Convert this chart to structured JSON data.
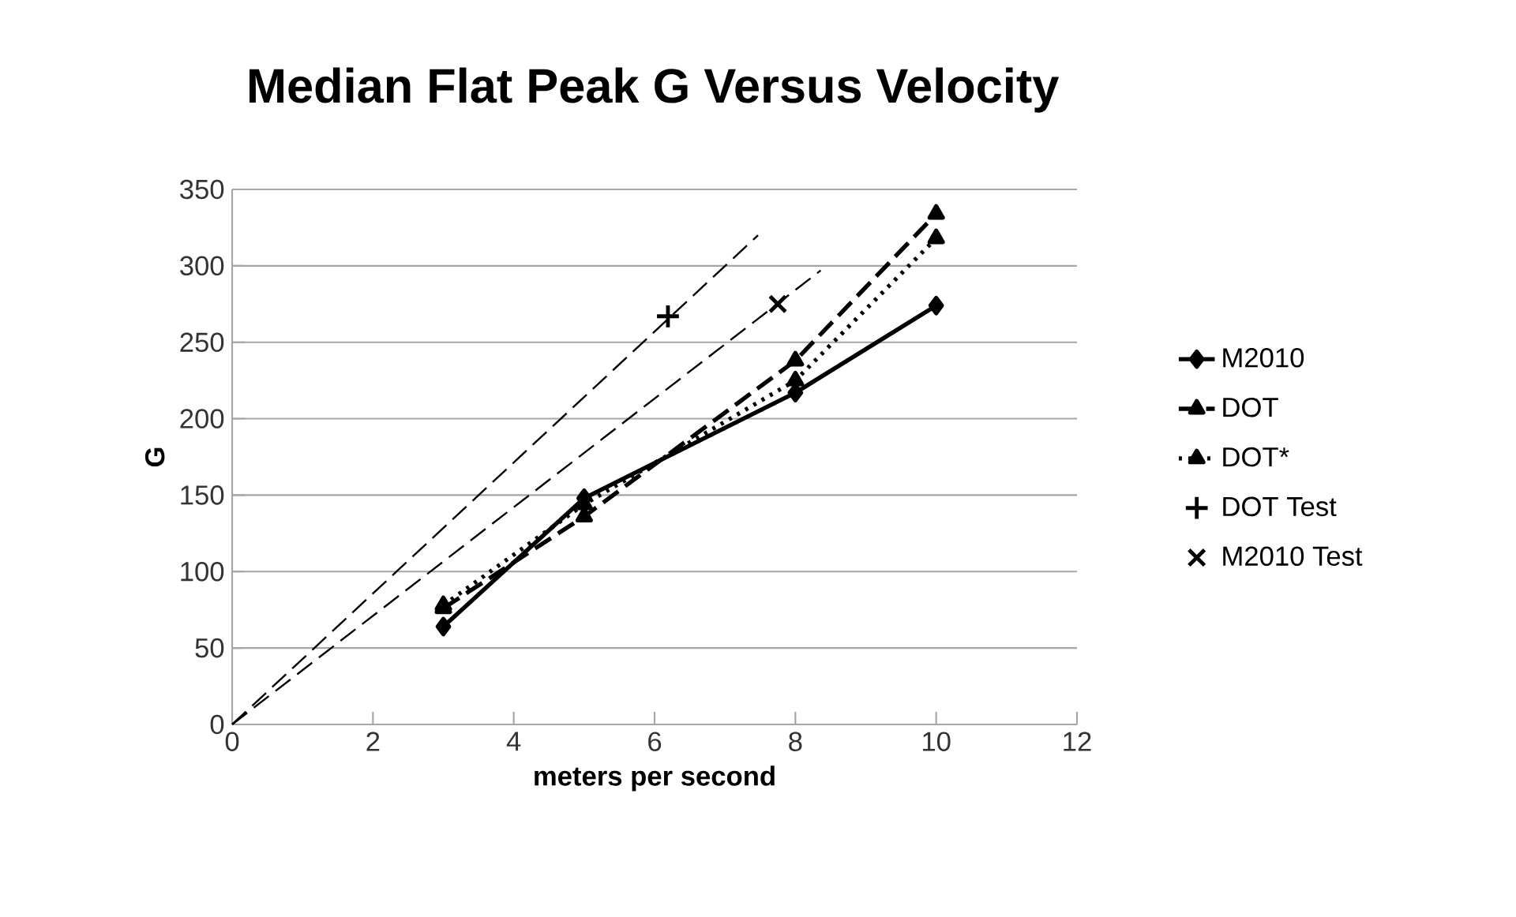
{
  "chart_data": {
    "type": "line",
    "title": "Median Flat Peak G Versus Velocity",
    "xlabel": "meters per second",
    "ylabel": "G",
    "xlim": [
      0,
      12
    ],
    "xticks": [
      0,
      2,
      4,
      6,
      8,
      10,
      12
    ],
    "ylim": [
      0,
      350
    ],
    "yticks": [
      0,
      50,
      100,
      150,
      200,
      250,
      300,
      350
    ],
    "grid": "y",
    "legend": "right",
    "series": [
      {
        "name": "M2010",
        "color": "#000000",
        "x": [
          3,
          5,
          8,
          10
        ],
        "values": [
          64,
          148,
          217,
          274
        ],
        "marker": "diamond",
        "line_style": "solid"
      },
      {
        "name": "DOT",
        "color": "#000000",
        "x": [
          3,
          5,
          8,
          10
        ],
        "values": [
          76,
          136,
          238,
          334
        ],
        "marker": "triangle",
        "line_style": "dashed"
      },
      {
        "name": "DOT*",
        "color": "#000000",
        "x": [
          3,
          5,
          8,
          10
        ],
        "values": [
          78,
          144,
          225,
          318
        ],
        "marker": "triangle",
        "line_style": "dotted"
      },
      {
        "name": "DOT Test",
        "type": "scatter",
        "color": "#000000",
        "x": [
          6.19
        ],
        "values": [
          267
        ],
        "marker": "plus"
      },
      {
        "name": "M2010 Test",
        "type": "scatter",
        "color": "#000000",
        "x": [
          7.75
        ],
        "values": [
          275
        ],
        "marker": "cross"
      },
      {
        "color": "#000000",
        "x": [
          0,
          7.47
        ],
        "values": [
          0,
          320
        ],
        "marker": "none",
        "line_style": "dashed"
      },
      {
        "color": "#000000",
        "x": [
          0,
          8.36
        ],
        "values": [
          0,
          297
        ],
        "marker": "none",
        "line_style": "dashed"
      }
    ]
  }
}
